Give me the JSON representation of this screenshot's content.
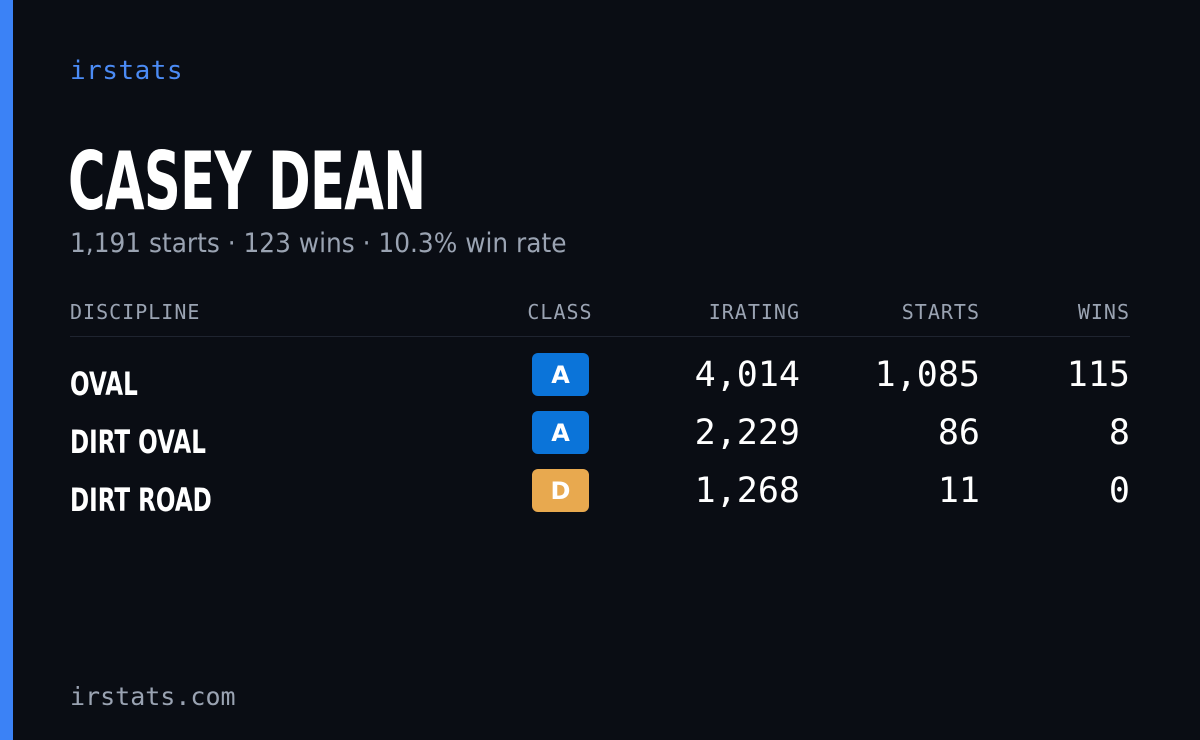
{
  "brand": "irstats",
  "driver_name": "CASEY DEAN",
  "summary": "1,191 starts · 123 wins · 10.3% win rate",
  "table": {
    "headers": {
      "discipline": "DISCIPLINE",
      "class": "CLASS",
      "irating": "IRATING",
      "starts": "STARTS",
      "wins": "WINS"
    },
    "rows": [
      {
        "discipline": "OVAL",
        "class": "A",
        "class_color": "#0b74d9",
        "irating": "4,014",
        "starts": "1,085",
        "wins": "115"
      },
      {
        "discipline": "DIRT OVAL",
        "class": "A",
        "class_color": "#0b74d9",
        "irating": "2,229",
        "starts": "86",
        "wins": "8"
      },
      {
        "discipline": "DIRT ROAD",
        "class": "D",
        "class_color": "#e8a94f",
        "irating": "1,268",
        "starts": "11",
        "wins": "0"
      }
    ]
  },
  "footer": "irstats.com",
  "colors": {
    "background": "#0a0d14",
    "accent": "#3b82f6",
    "muted_text": "#9aa3b2"
  }
}
